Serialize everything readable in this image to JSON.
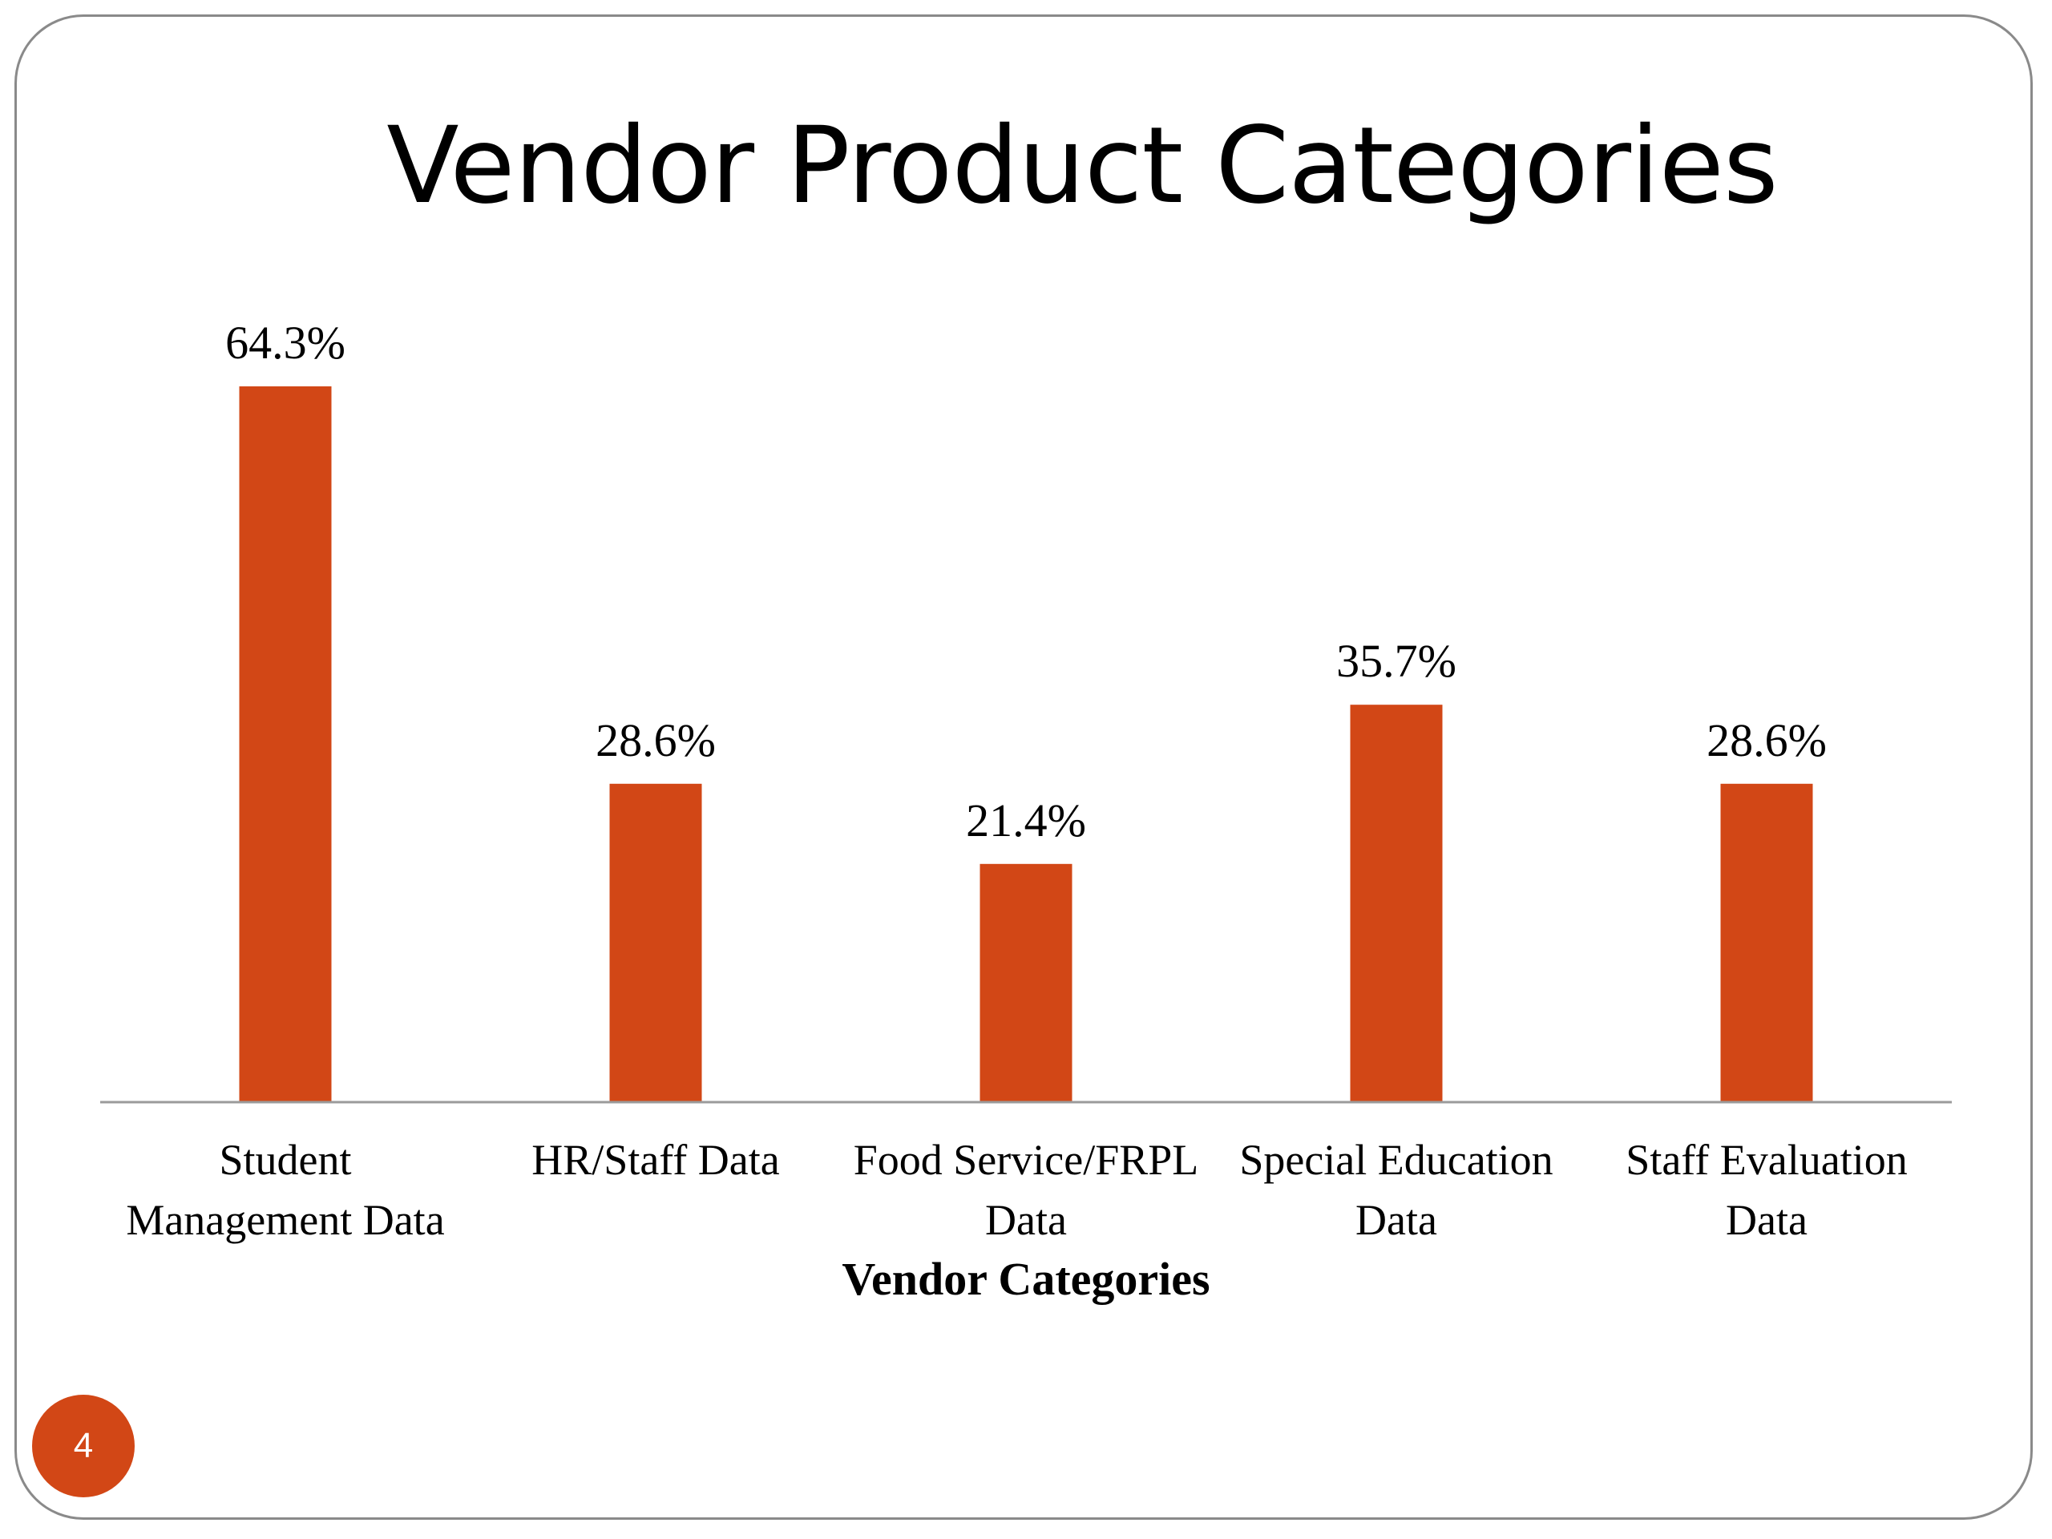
{
  "slide": {
    "title": "Vendor Product Categories",
    "page_number": "4"
  },
  "colors": {
    "bar": "#d24716",
    "badge": "#d24716",
    "axis": "#9b9b9b",
    "frame": "#8a8a8a"
  },
  "chart_data": {
    "type": "bar",
    "title": "",
    "categories": [
      [
        "Student",
        "Management Data"
      ],
      [
        "HR/Staff Data"
      ],
      [
        "Food Service/FRPL",
        "Data"
      ],
      [
        "Special Education",
        "Data"
      ],
      [
        "Staff Evaluation",
        "Data"
      ]
    ],
    "values": [
      64.3,
      28.6,
      21.4,
      35.7,
      28.6
    ],
    "value_labels": [
      "64.3%",
      "28.6%",
      "21.4%",
      "35.7%",
      "28.6%"
    ],
    "xlabel": "Vendor Categories",
    "ylabel": "",
    "ylim": [
      0,
      64.3
    ],
    "grid": false,
    "legend": "none"
  }
}
